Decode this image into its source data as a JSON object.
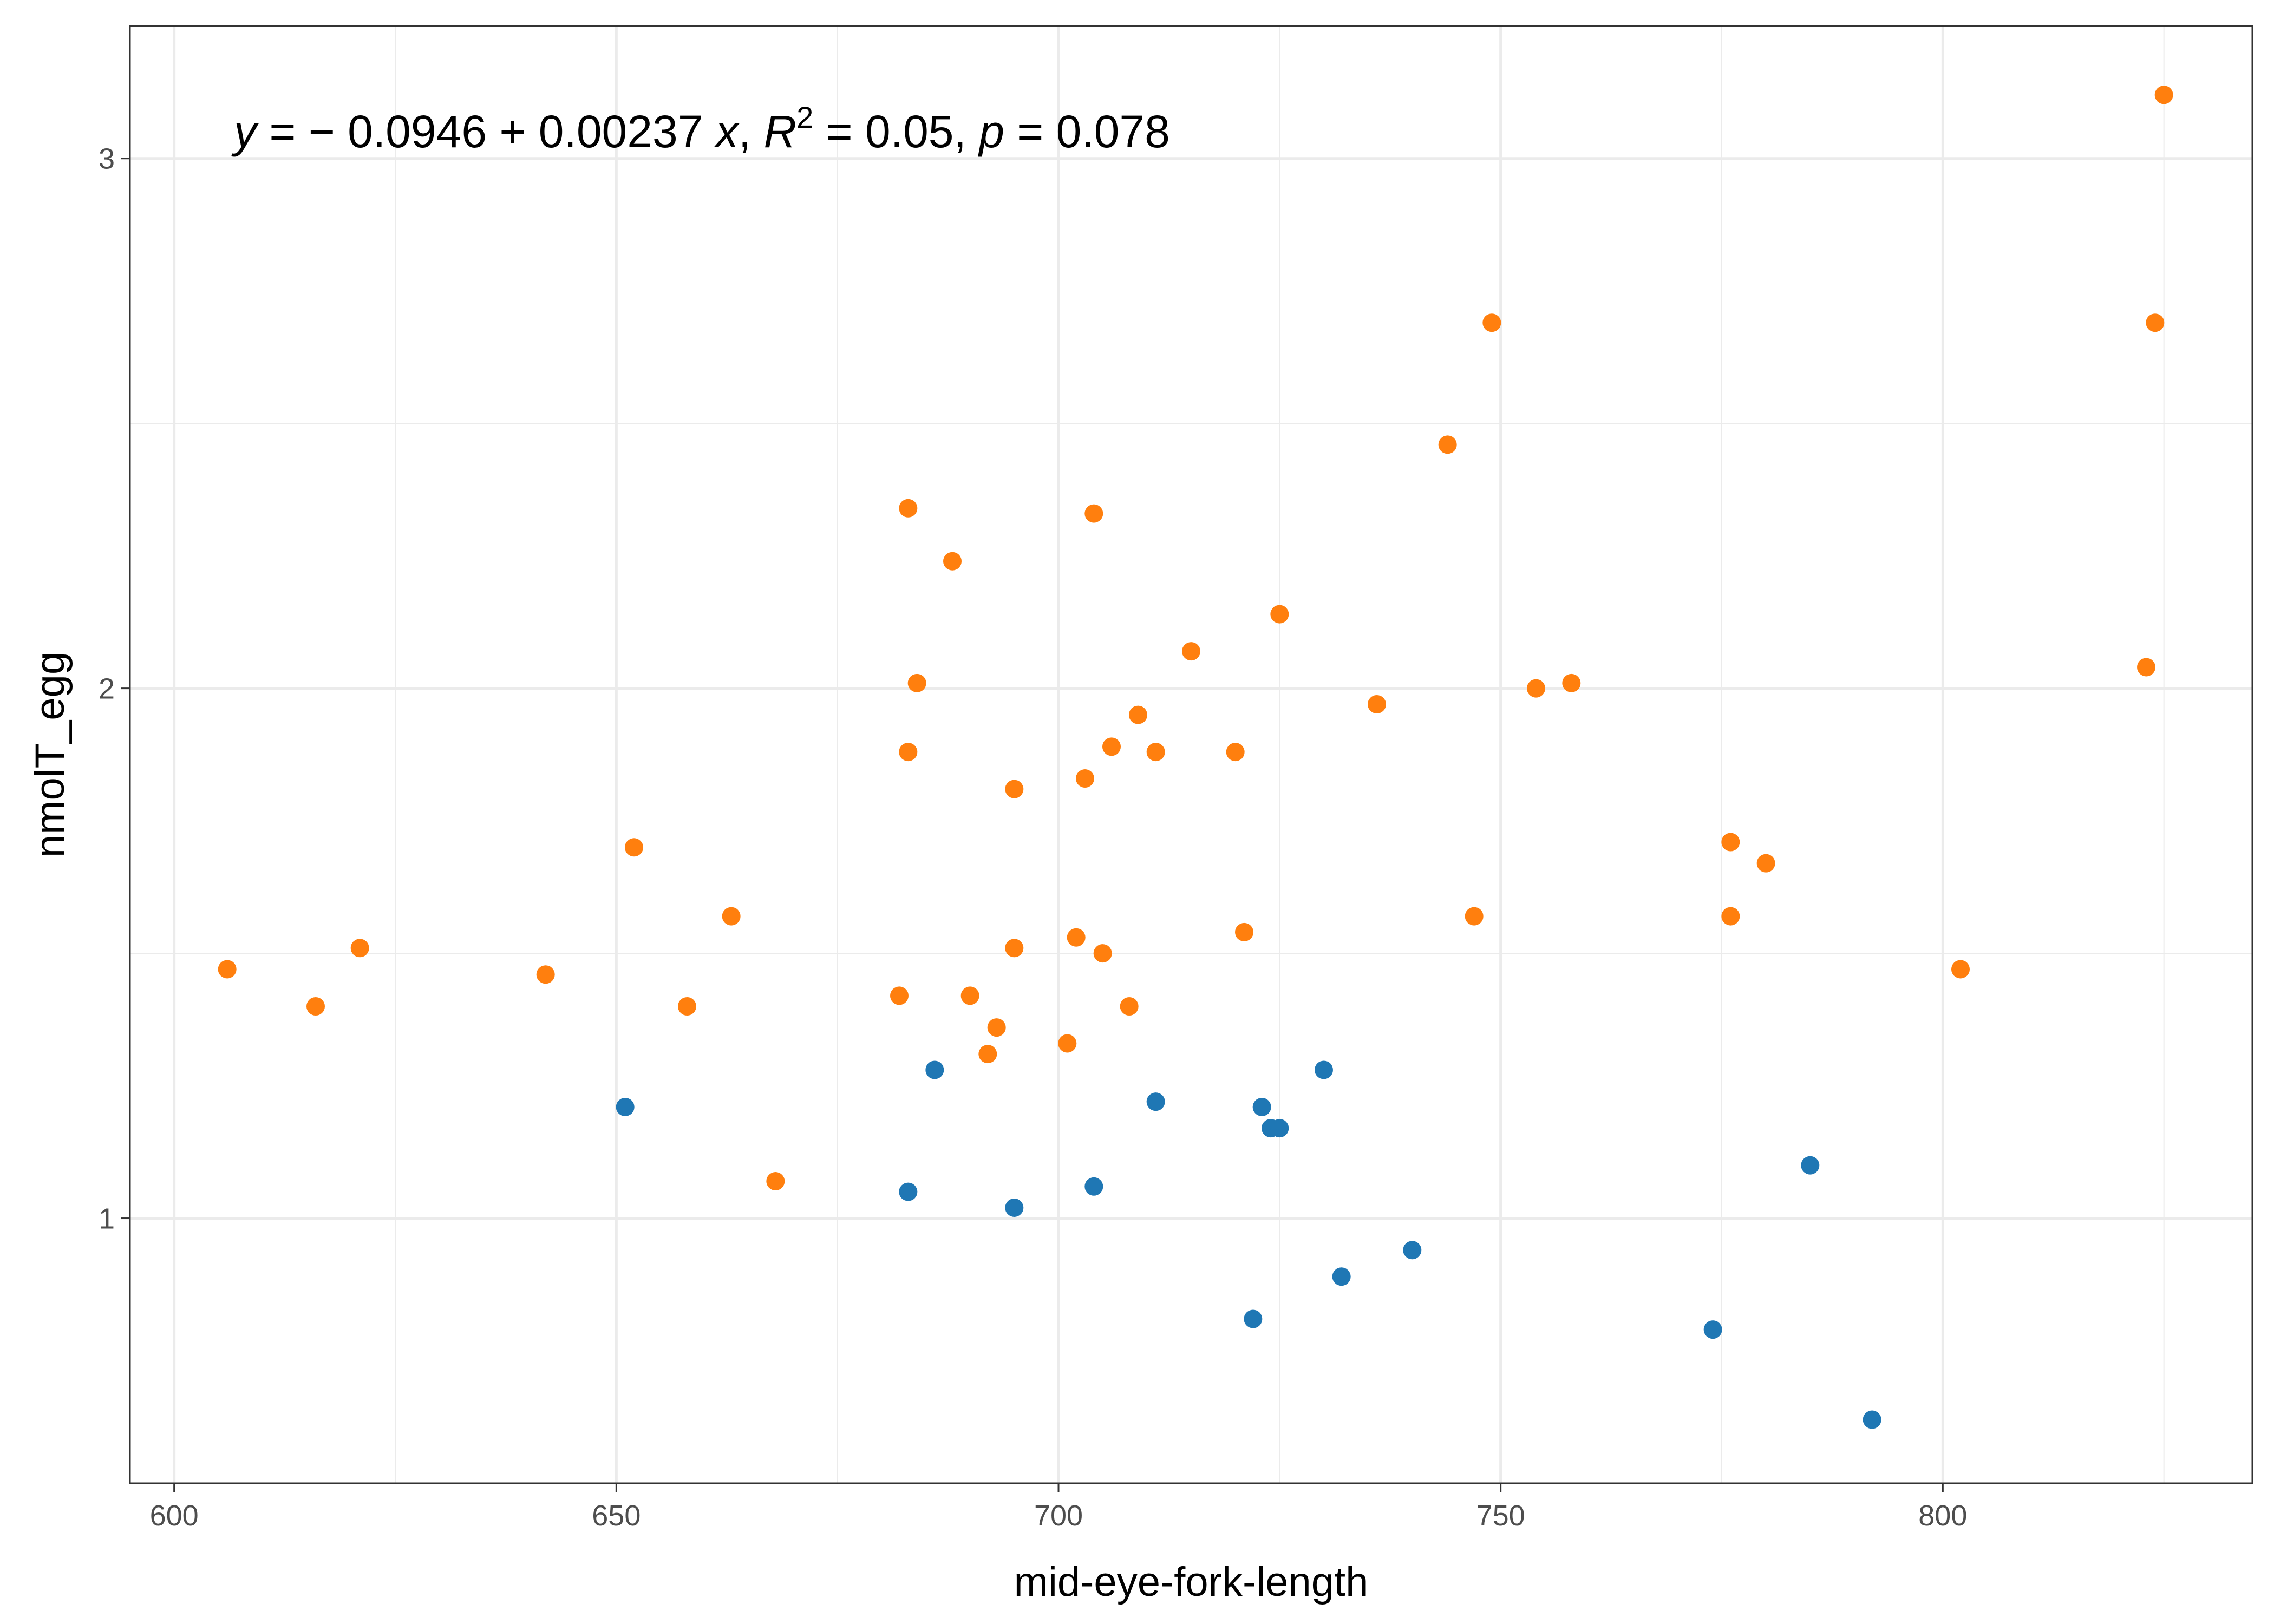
{
  "chart_data": {
    "type": "scatter",
    "title": "",
    "xlabel": "mid-eye-fork-length",
    "ylabel": "nmolT_egg",
    "xlim": [
      595,
      835
    ],
    "ylim": [
      0.5,
      3.25
    ],
    "xticks": [
      600,
      650,
      700,
      750,
      800
    ],
    "xtick_labels": [
      "600",
      "650",
      "700",
      "750",
      "800"
    ],
    "yticks": [
      1,
      2,
      3
    ],
    "ytick_labels": [
      "1",
      "2",
      "3"
    ],
    "x_minor_ticks": [
      625,
      675,
      725,
      775,
      825
    ],
    "y_minor_ticks": [
      1.5,
      2.5
    ],
    "grid": true,
    "annotation": {
      "parts": [
        {
          "t": "y",
          "italic": true
        },
        {
          "t": " = − 0.0946 + 0.00237 ",
          "italic": false
        },
        {
          "t": "x",
          "italic": true
        },
        {
          "t": ", ",
          "italic": false
        },
        {
          "t": "R",
          "italic": true
        },
        {
          "t": "2",
          "sup": true
        },
        {
          "t": " = 0.05, ",
          "italic": false
        },
        {
          "t": "p",
          "italic": true
        },
        {
          "t": " = 0.078",
          "italic": false
        }
      ]
    },
    "colors": {
      "orange": "#ff7f0e",
      "blue": "#1f77b4"
    },
    "series": [
      {
        "color": "#ff7f0e",
        "points": [
          [
            606,
            1.47
          ],
          [
            616,
            1.4
          ],
          [
            621,
            1.51
          ],
          [
            642,
            1.46
          ],
          [
            652,
            1.7
          ],
          [
            658,
            1.4
          ],
          [
            663,
            1.57
          ],
          [
            668,
            1.07
          ],
          [
            682,
            1.42
          ],
          [
            683,
            1.88
          ],
          [
            683,
            2.34
          ],
          [
            684,
            2.01
          ],
          [
            688,
            2.24
          ],
          [
            690,
            1.42
          ],
          [
            692,
            1.31
          ],
          [
            693,
            1.36
          ],
          [
            695,
            1.81
          ],
          [
            695,
            1.51
          ],
          [
            701,
            1.33
          ],
          [
            702,
            1.53
          ],
          [
            703,
            1.83
          ],
          [
            704,
            2.33
          ],
          [
            705,
            1.5
          ],
          [
            706,
            1.89
          ],
          [
            708,
            1.4
          ],
          [
            709,
            1.95
          ],
          [
            711,
            1.88
          ],
          [
            715,
            2.07
          ],
          [
            720,
            1.88
          ],
          [
            721,
            1.54
          ],
          [
            725,
            2.14
          ],
          [
            736,
            1.97
          ],
          [
            744,
            2.46
          ],
          [
            747,
            1.57
          ],
          [
            749,
            2.69
          ],
          [
            754,
            2.0
          ],
          [
            758,
            2.01
          ],
          [
            776,
            1.71
          ],
          [
            776,
            1.57
          ],
          [
            780,
            1.67
          ],
          [
            802,
            1.47
          ],
          [
            823,
            2.04
          ],
          [
            824,
            2.69
          ],
          [
            825,
            3.12
          ]
        ]
      },
      {
        "color": "#1f77b4",
        "points": [
          [
            651,
            1.21
          ],
          [
            683,
            1.05
          ],
          [
            686,
            1.28
          ],
          [
            695,
            1.02
          ],
          [
            704,
            1.06
          ],
          [
            711,
            1.22
          ],
          [
            722,
            0.81
          ],
          [
            723,
            1.21
          ],
          [
            724,
            1.17
          ],
          [
            725,
            1.17
          ],
          [
            730,
            1.28
          ],
          [
            732,
            0.89
          ],
          [
            740,
            0.94
          ],
          [
            774,
            0.79
          ],
          [
            785,
            1.1
          ],
          [
            792,
            0.62
          ]
        ]
      }
    ]
  }
}
